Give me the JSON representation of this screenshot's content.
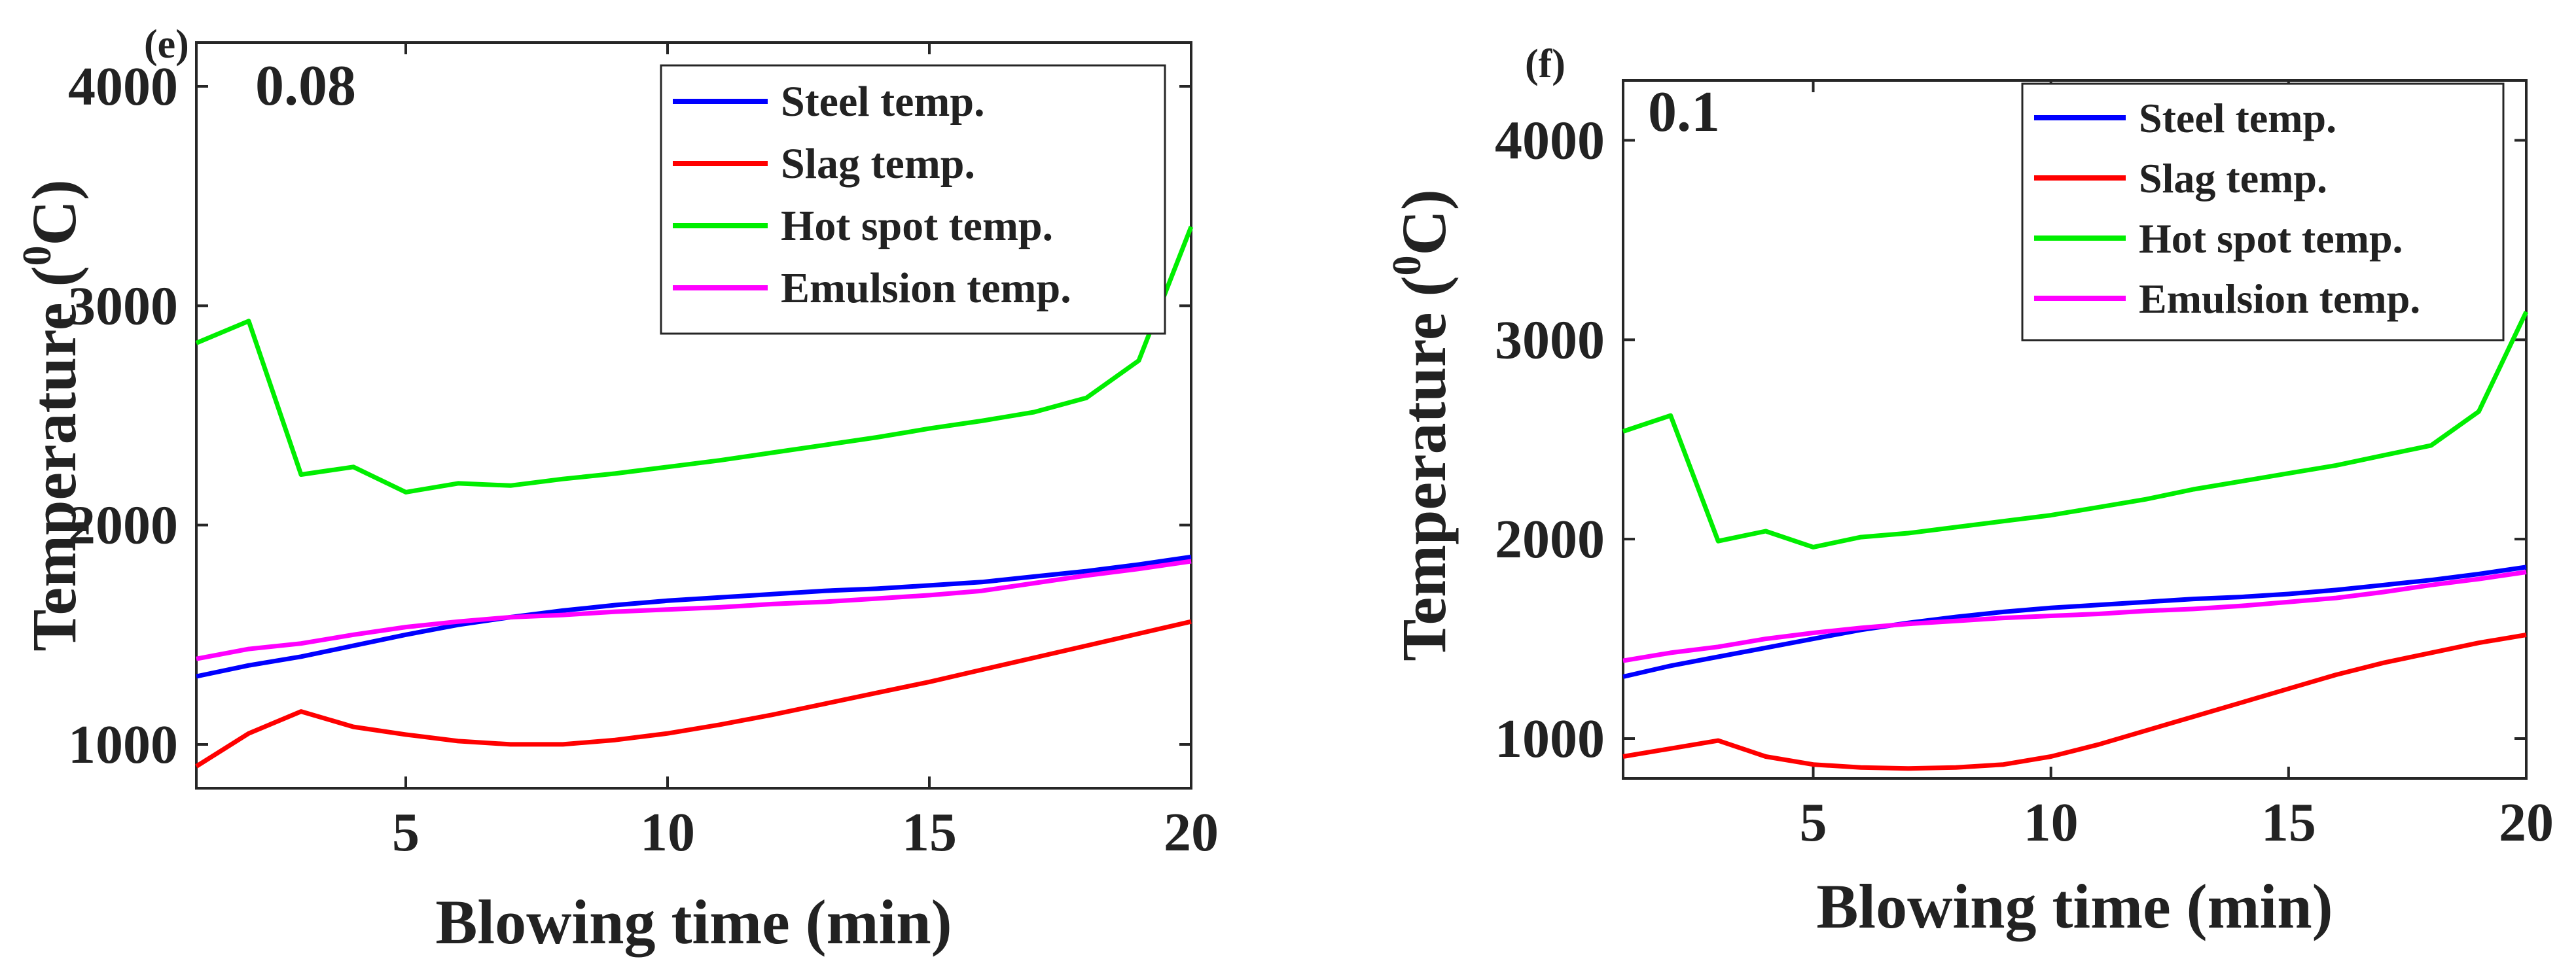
{
  "chart_data": [
    {
      "type": "line",
      "panel_label": "(e)",
      "annotation": "0.08",
      "xlabel": "Blowing time (min)",
      "ylabel": "Temperature (",
      "ylabel_sup": "0",
      "ylabel_end": "C)",
      "xlim": [
        1,
        20
      ],
      "ylim": [
        800,
        4200
      ],
      "xticks": [
        5,
        10,
        15,
        20
      ],
      "xtick_labels": [
        "5",
        "10",
        "15",
        "20"
      ],
      "yticks": [
        1000,
        2000,
        3000,
        4000
      ],
      "ytick_labels": [
        "1000",
        "2000",
        "3000",
        "4000"
      ],
      "legend_position": "top-right",
      "x": [
        1,
        2,
        3,
        4,
        5,
        6,
        7,
        8,
        9,
        10,
        11,
        12,
        13,
        14,
        15,
        16,
        17,
        18,
        19,
        20
      ],
      "series": [
        {
          "name": "Steel temp.",
          "color": "#0000ff",
          "values": [
            1310,
            1360,
            1400,
            1450,
            1500,
            1545,
            1580,
            1610,
            1635,
            1655,
            1670,
            1685,
            1700,
            1710,
            1725,
            1740,
            1765,
            1790,
            1820,
            1855
          ]
        },
        {
          "name": "Slag temp.",
          "color": "#ff0000",
          "values": [
            900,
            1050,
            1150,
            1080,
            1045,
            1015,
            1000,
            1000,
            1020,
            1050,
            1090,
            1135,
            1185,
            1235,
            1285,
            1340,
            1395,
            1450,
            1505,
            1560
          ]
        },
        {
          "name": "Hot spot temp.",
          "color": "#00ee00",
          "values": [
            2830,
            2930,
            2230,
            2265,
            2150,
            2190,
            2180,
            2210,
            2235,
            2265,
            2295,
            2330,
            2365,
            2400,
            2440,
            2475,
            2515,
            2580,
            2750,
            3360
          ]
        },
        {
          "name": "Emulsion temp.",
          "color": "#ff00ff",
          "values": [
            1390,
            1435,
            1460,
            1500,
            1535,
            1560,
            1580,
            1590,
            1605,
            1615,
            1625,
            1640,
            1650,
            1665,
            1680,
            1700,
            1735,
            1770,
            1800,
            1835
          ]
        }
      ]
    },
    {
      "type": "line",
      "panel_label": "(f)",
      "annotation": "0.1",
      "xlabel": "Blowing time (min)",
      "ylabel": "Temperature (",
      "ylabel_sup": "0",
      "ylabel_end": "C)",
      "xlim": [
        1,
        20
      ],
      "ylim": [
        800,
        4300
      ],
      "xticks": [
        5,
        10,
        15,
        20
      ],
      "xtick_labels": [
        "5",
        "10",
        "15",
        "20"
      ],
      "yticks": [
        1000,
        2000,
        3000,
        4000
      ],
      "ytick_labels": [
        "1000",
        "2000",
        "3000",
        "4000"
      ],
      "legend_position": "top-right",
      "x": [
        1,
        2,
        3,
        4,
        5,
        6,
        7,
        8,
        9,
        10,
        11,
        12,
        13,
        14,
        15,
        16,
        17,
        18,
        19,
        20
      ],
      "series": [
        {
          "name": "Steel temp.",
          "color": "#0000ff",
          "values": [
            1310,
            1365,
            1410,
            1455,
            1500,
            1545,
            1580,
            1610,
            1635,
            1655,
            1670,
            1685,
            1700,
            1710,
            1725,
            1745,
            1770,
            1795,
            1825,
            1860
          ]
        },
        {
          "name": "Slag temp.",
          "color": "#ff0000",
          "values": [
            910,
            950,
            990,
            910,
            870,
            855,
            850,
            855,
            870,
            910,
            970,
            1040,
            1110,
            1180,
            1250,
            1320,
            1380,
            1430,
            1480,
            1520
          ]
        },
        {
          "name": "Hot spot temp.",
          "color": "#00ee00",
          "values": [
            2540,
            2620,
            1990,
            2040,
            1960,
            2010,
            2030,
            2060,
            2090,
            2120,
            2160,
            2200,
            2250,
            2290,
            2330,
            2370,
            2420,
            2470,
            2640,
            3140
          ]
        },
        {
          "name": "Emulsion temp.",
          "color": "#ff00ff",
          "values": [
            1390,
            1430,
            1460,
            1500,
            1530,
            1555,
            1575,
            1590,
            1605,
            1615,
            1625,
            1640,
            1650,
            1665,
            1685,
            1705,
            1735,
            1770,
            1800,
            1835
          ]
        }
      ]
    }
  ]
}
